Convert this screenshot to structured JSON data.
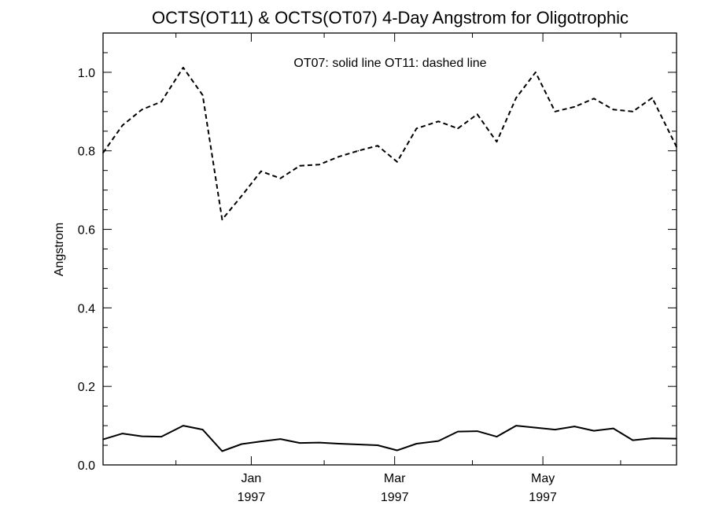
{
  "chart_data": {
    "type": "line",
    "title": "OCTS(OT11) & OCTS(OT07) 4-Day Angstrom for Oligotrophic",
    "xlabel": "",
    "ylabel": "Angstrom",
    "annotation": "OT07: solid line   OT11: dashed line",
    "x_unit": "days since 1996-11-01",
    "xlim": [
      0,
      236
    ],
    "ylim": [
      0.0,
      1.1
    ],
    "y_ticks": [
      {
        "value": 0.0,
        "label": "0.0"
      },
      {
        "value": 0.2,
        "label": "0.2"
      },
      {
        "value": 0.4,
        "label": "0.4"
      },
      {
        "value": 0.6,
        "label": "0.6"
      },
      {
        "value": 0.8,
        "label": "0.8"
      },
      {
        "value": 1.0,
        "label": "1.0"
      }
    ],
    "x_ticks": [
      {
        "value": 61,
        "month": "Jan",
        "year": "1997"
      },
      {
        "value": 120,
        "month": "Mar",
        "year": "1997"
      },
      {
        "value": 181,
        "month": "May",
        "year": "1997"
      }
    ],
    "grid": false,
    "series": [
      {
        "name": "OT07",
        "style": "solid",
        "color": "#000000",
        "points": [
          [
            0,
            0.065
          ],
          [
            8,
            0.08
          ],
          [
            16,
            0.073
          ],
          [
            24,
            0.072
          ],
          [
            33,
            0.1
          ],
          [
            41,
            0.09
          ],
          [
            49,
            0.035
          ],
          [
            57,
            0.053
          ],
          [
            65,
            0.06
          ],
          [
            73,
            0.066
          ],
          [
            81,
            0.056
          ],
          [
            89,
            0.057
          ],
          [
            97,
            0.054
          ],
          [
            105,
            0.052
          ],
          [
            113,
            0.05
          ],
          [
            121,
            0.037
          ],
          [
            129,
            0.054
          ],
          [
            138,
            0.061
          ],
          [
            146,
            0.085
          ],
          [
            154,
            0.086
          ],
          [
            162,
            0.072
          ],
          [
            170,
            0.1
          ],
          [
            178,
            0.095
          ],
          [
            186,
            0.09
          ],
          [
            194,
            0.098
          ],
          [
            202,
            0.087
          ],
          [
            210,
            0.093
          ],
          [
            218,
            0.063
          ],
          [
            226,
            0.068
          ],
          [
            236,
            0.067
          ]
        ]
      },
      {
        "name": "OT11",
        "style": "dashed",
        "color": "#000000",
        "points": [
          [
            0,
            0.795
          ],
          [
            8,
            0.865
          ],
          [
            16,
            0.905
          ],
          [
            24,
            0.925
          ],
          [
            33,
            1.012
          ],
          [
            41,
            0.942
          ],
          [
            49,
            0.625
          ],
          [
            57,
            0.685
          ],
          [
            65,
            0.748
          ],
          [
            73,
            0.73
          ],
          [
            81,
            0.762
          ],
          [
            89,
            0.765
          ],
          [
            97,
            0.785
          ],
          [
            105,
            0.8
          ],
          [
            113,
            0.813
          ],
          [
            121,
            0.772
          ],
          [
            129,
            0.857
          ],
          [
            138,
            0.875
          ],
          [
            146,
            0.857
          ],
          [
            154,
            0.893
          ],
          [
            162,
            0.823
          ],
          [
            170,
            0.935
          ],
          [
            178,
            1.0
          ],
          [
            186,
            0.9
          ],
          [
            194,
            0.912
          ],
          [
            202,
            0.933
          ],
          [
            210,
            0.905
          ],
          [
            218,
            0.9
          ],
          [
            226,
            0.935
          ],
          [
            236,
            0.81
          ]
        ]
      }
    ]
  }
}
